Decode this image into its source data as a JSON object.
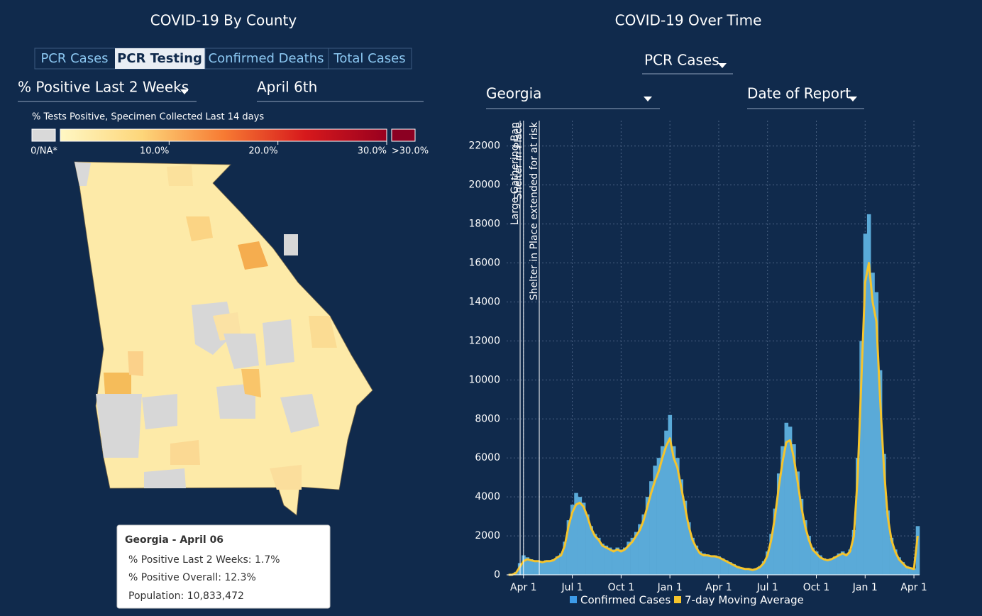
{
  "left": {
    "title": "COVID-19 By County",
    "tabs": [
      "PCR Cases",
      "PCR Testing",
      "Confirmed Deaths",
      "Total Cases"
    ],
    "active_tab": 1,
    "metric": "% Positive Last 2 Weeks",
    "date": "April 6th",
    "color_scale": {
      "title": "% Tests Positive, Specimen Collected Last 14 days",
      "na_label": "0/NA*",
      "over_label": ">30.0%",
      "lim": [
        0,
        30
      ],
      "colors": [
        "#fff7c4",
        "#fdd67a",
        "#f77b33",
        "#d7191c",
        "#99001f"
      ],
      "na_color": "#d9d9d9",
      "over_color": "#8b0022",
      "ticks": [
        {
          "value": 10,
          "label": "10.0%"
        },
        {
          "value": 20,
          "label": "20.0%"
        },
        {
          "value": 30,
          "label": "30.0%"
        }
      ]
    },
    "tooltip": {
      "title": "Georgia - April 06",
      "lines": [
        "% Positive Last 2 Weeks: 1.7%",
        "% Positive Overall: 12.3%",
        "Population: 10,833,472"
      ]
    }
  },
  "right": {
    "title": "COVID-19 Over Time",
    "measure": "PCR Cases",
    "region": "Georgia",
    "date_type": "Date of Report"
  },
  "chart_data": {
    "type": "bar_line",
    "categories": [
      null,
      null,
      null,
      null,
      "Apr 1",
      null,
      null,
      null,
      null,
      null,
      null,
      null,
      null,
      null,
      null,
      null,
      null,
      "Jul 1",
      null,
      null,
      null,
      null,
      null,
      null,
      null,
      null,
      null,
      null,
      null,
      null,
      "Oct 1",
      null,
      null,
      null,
      null,
      null,
      null,
      null,
      null,
      null,
      null,
      null,
      null,
      "Jan 1",
      null,
      null,
      null,
      null,
      null,
      null,
      null,
      null,
      null,
      null,
      null,
      null,
      "Apr 1",
      null,
      null,
      null,
      null,
      null,
      null,
      null,
      null,
      null,
      null,
      null,
      null,
      "Jul 1",
      null,
      null,
      null,
      null,
      null,
      null,
      null,
      null,
      null,
      null,
      null,
      null,
      "Oct 1",
      null,
      null,
      null,
      null,
      null,
      null,
      null,
      null,
      null,
      null,
      null,
      null,
      "Jan 1",
      null,
      null,
      null,
      null,
      null,
      null,
      null,
      null,
      null,
      null,
      null,
      null,
      "Apr 1",
      null
    ],
    "series": [
      {
        "name": "Confirmed Cases",
        "color": "#3d9be9",
        "fill": "#5aaad8",
        "kind": "bar",
        "values": [
          0,
          20,
          150,
          600,
          1000,
          900,
          800,
          750,
          700,
          700,
          750,
          750,
          800,
          950,
          1100,
          1700,
          2800,
          3600,
          4200,
          4000,
          3700,
          3100,
          2500,
          2100,
          1900,
          1600,
          1500,
          1400,
          1300,
          1400,
          1300,
          1400,
          1700,
          1900,
          2200,
          2600,
          3100,
          4000,
          4800,
          5600,
          6000,
          6600,
          7400,
          8200,
          6600,
          6000,
          4900,
          3800,
          2700,
          1900,
          1500,
          1200,
          1100,
          1050,
          1000,
          1000,
          950,
          850,
          750,
          650,
          550,
          450,
          380,
          330,
          320,
          270,
          330,
          450,
          700,
          1200,
          2100,
          3400,
          5200,
          6600,
          7800,
          7600,
          6700,
          5300,
          3900,
          2800,
          2000,
          1400,
          1200,
          1000,
          850,
          800,
          850,
          950,
          1100,
          1200,
          1100,
          1300,
          2300,
          6000,
          12000,
          17500,
          18500,
          15500,
          14500,
          10500,
          6200,
          3300,
          1900,
          1300,
          900,
          650,
          450,
          380,
          330,
          2500
        ]
      },
      {
        "name": "7-day Moving Average",
        "color": "#f5c42c",
        "kind": "line",
        "values": [
          0,
          10,
          100,
          400,
          700,
          800,
          750,
          700,
          700,
          650,
          700,
          700,
          750,
          900,
          1000,
          1500,
          2500,
          3200,
          3600,
          3700,
          3500,
          3000,
          2400,
          2000,
          1800,
          1500,
          1400,
          1300,
          1200,
          1300,
          1200,
          1300,
          1500,
          1700,
          2000,
          2300,
          2800,
          3500,
          4200,
          4800,
          5300,
          6000,
          6600,
          7000,
          6000,
          5500,
          4500,
          3500,
          2500,
          1800,
          1400,
          1100,
          1000,
          1000,
          950,
          950,
          900,
          800,
          700,
          600,
          500,
          400,
          350,
          300,
          300,
          250,
          300,
          400,
          600,
          1000,
          1800,
          3000,
          4500,
          5800,
          6800,
          6900,
          6000,
          4800,
          3500,
          2500,
          1800,
          1300,
          1100,
          900,
          800,
          750,
          800,
          900,
          1000,
          1100,
          1000,
          1200,
          2000,
          5000,
          10000,
          15000,
          16000,
          14000,
          13000,
          9000,
          5500,
          3000,
          1800,
          1200,
          800,
          600,
          400,
          350,
          300,
          2000
        ]
      }
    ],
    "ylim": [
      0,
      23300
    ],
    "yticks": [
      0,
      2000,
      4000,
      6000,
      8000,
      10000,
      12000,
      14000,
      16000,
      18000,
      20000,
      22000
    ],
    "grid": true,
    "annotations": [
      {
        "text": "Large Gathering Ban",
        "x": 3.1
      },
      {
        "text": "Shelter in Place",
        "x": 4.0
      },
      {
        "text": "Shelter in Place extended for at risk",
        "x": 8.2
      }
    ],
    "legend": "bottom"
  }
}
